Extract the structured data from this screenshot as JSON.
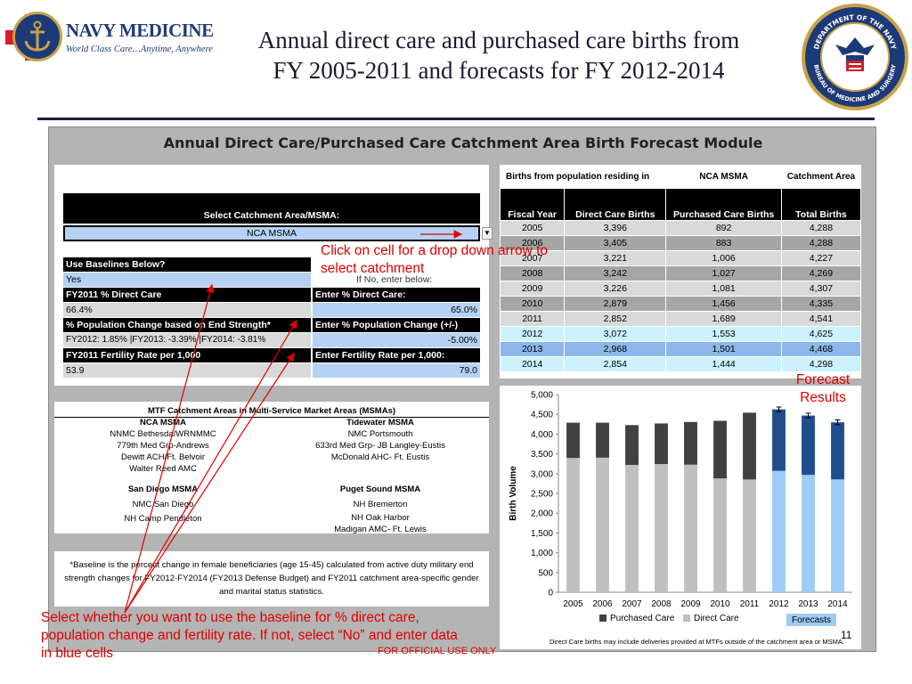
{
  "header": {
    "brand": "NAVY MEDICINE",
    "tagline": "World Class Care…Anytime, Anywhere",
    "title_line1": "Annual direct care and purchased care births from",
    "title_line2": "FY 2005-2011 and forecasts for FY 2012-2014",
    "seal_text_top": "DEPARTMENT OF THE NAVY",
    "seal_text_bottom": "BUREAU OF MEDICINE AND SURGERY"
  },
  "module": {
    "title": "Annual Direct Care/Purchased Care Catchment Area Birth Forecast Module",
    "select_label": "Select Catchment Area/MSMA:",
    "select_value": "NCA MSMA",
    "use_baselines_label": "Use Baselines Below?",
    "use_baselines_value": "Yes",
    "if_no_label": "If No, enter below:",
    "direct_care_label": "FY2011 % Direct Care",
    "direct_care_value": "66.4%",
    "enter_direct_label": "Enter % Direct Care:",
    "enter_direct_value": "65.0%",
    "pop_change_label": "% Population Change based on End Strength*",
    "pop_change_value": "FY2012: 1.85% |FY2013: -3.39% |FY2014: -3.81%",
    "enter_pop_label": "Enter %  Population Change (+/-)",
    "enter_pop_value": "-5.00%",
    "fertility_label": "FY2011 Fertility Rate per 1,000",
    "fertility_value": "53.9",
    "enter_fert_label": "Enter Fertility Rate per 1,000:",
    "enter_fert_value": "79.0"
  },
  "mtf": {
    "title": "MTF Catchment Areas in Multi-Service Market Areas (MSMAs)",
    "nca_title": "NCA MSMA",
    "nca_items": [
      "NNMC Bethesda/WRNMMC",
      "779th Med Grp-Andrews",
      "Dewitt ACH/Ft. Belvoir",
      "Walter Reed AMC"
    ],
    "tide_title": "Tidewater MSMA",
    "tide_items": [
      "NMC Portsmouth",
      "633rd Med Grp- JB Langley-Eustis",
      "McDonald AHC- Ft. Eustis"
    ],
    "sd_title": "San Diego MSMA",
    "sd_items": [
      "NMC San Diego",
      "NH Camp Pendleton"
    ],
    "ps_title": "Puget Sound MSMA",
    "ps_items": [
      "NH Bremerton",
      "NH Oak Harbor",
      "Madigan AMC- Ft. Lewis"
    ]
  },
  "note": "*Baseline is the percent change in female beneficiaries (age 15-45) calculated from active duty military end strength changes for FY2012-FY2014 (FY2013 Defense Budget) and FY2011 catchment area-specific gender and marital status statistics.",
  "table": {
    "hdr_births": "Births from population residing in",
    "hdr_area": "NCA MSMA",
    "hdr_catch": "Catchment Area",
    "col_year": "Fiscal Year",
    "col_direct": "Direct Care Births",
    "col_purchased": "Purchased Care Births",
    "col_total": "Total Births",
    "rows": [
      [
        "2005",
        "3,396",
        "892",
        "4,288"
      ],
      [
        "2006",
        "3,405",
        "883",
        "4,288"
      ],
      [
        "2007",
        "3,221",
        "1,006",
        "4,227"
      ],
      [
        "2008",
        "3,242",
        "1,027",
        "4,269"
      ],
      [
        "2009",
        "3,226",
        "1,081",
        "4,307"
      ],
      [
        "2010",
        "2,879",
        "1,456",
        "4,335"
      ],
      [
        "2011",
        "2,852",
        "1,689",
        "4,541"
      ],
      [
        "2012",
        "3,072",
        "1,553",
        "4,625"
      ],
      [
        "2013",
        "2,968",
        "1,501",
        "4,468"
      ],
      [
        "2014",
        "2,854",
        "1,444",
        "4,298"
      ]
    ]
  },
  "chart_data": {
    "type": "bar",
    "stacked": true,
    "categories": [
      "2005",
      "2006",
      "2007",
      "2008",
      "2009",
      "2010",
      "2011",
      "2012",
      "2013",
      "2014"
    ],
    "series": [
      {
        "name": "Direct Care",
        "values": [
          3396,
          3405,
          3221,
          3242,
          3226,
          2879,
          2852,
          3072,
          2968,
          2854
        ],
        "color": "#c0c0c0",
        "forecast_color": "#9dcbf5"
      },
      {
        "name": "Purchased Care",
        "values": [
          892,
          883,
          1006,
          1027,
          1081,
          1456,
          1689,
          1553,
          1501,
          1444
        ],
        "color": "#404040",
        "forecast_color": "#1f4e8c"
      }
    ],
    "forecast_from": "2012",
    "forecast_label": "Forecasts",
    "ylabel": "Birth Volume",
    "ylim": [
      0,
      5000
    ],
    "yticks": [
      "0",
      "500",
      "1,000",
      "1,500",
      "2,000",
      "2,500",
      "3,000",
      "3,500",
      "4,000",
      "4,500",
      "5,000"
    ],
    "legend_position": "bottom",
    "grid": false
  },
  "callouts": {
    "dropdown": "Click on cell for a drop down arrow to select catchment",
    "forecast": "Forecast Results",
    "baseline": "Select whether you want to use the baseline for % direct care, population change and fertility rate. If not, select “No” and enter data in blue cells",
    "chart_footnote": "Direct Care births may include deliveries provided at MTFs outside of the catchment area or MSMA."
  },
  "footer": {
    "classification": "FOR OFFICIAL USE ONLY",
    "page": "11"
  },
  "colors": {
    "red": "#e00000",
    "navy": "#1d3a78"
  }
}
